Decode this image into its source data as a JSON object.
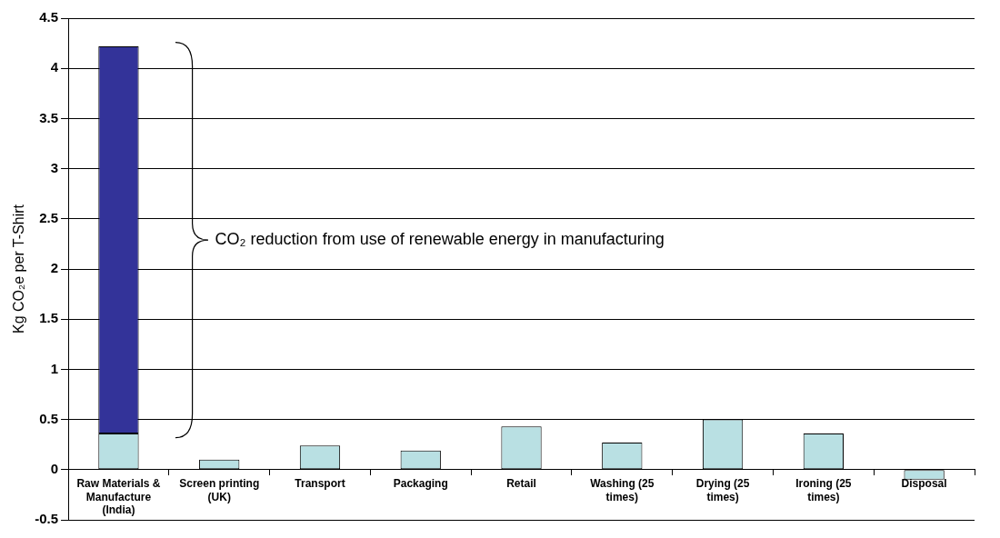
{
  "chart_data": {
    "type": "bar",
    "stacked": true,
    "ylabel": "Kg CO₂e per T-Shirt",
    "categories": [
      "Raw Materials & Manufacture (India)",
      "Screen printing (UK)",
      "Transport",
      "Packaging",
      "Retail",
      "Washing (25 times)",
      "Drying (25 times)",
      "Ironing (25 times)",
      "Disposal"
    ],
    "series": [
      {
        "color": "#b9e0e3",
        "values": [
          0.36,
          0.1,
          0.24,
          0.19,
          0.43,
          0.27,
          0.5,
          0.36,
          -0.1
        ]
      },
      {
        "color": "#333399",
        "values": [
          3.86,
          null,
          null,
          null,
          null,
          null,
          null,
          null,
          null
        ]
      }
    ],
    "ylim": [
      -0.5,
      4.5
    ],
    "yticks": [
      -0.5,
      0,
      0.5,
      1,
      1.5,
      2,
      2.5,
      3,
      3.5,
      4,
      4.5
    ],
    "grid": "y",
    "legend": false,
    "annotations": [
      "CO₂ reduction from use of renewable energy in manufacturing"
    ]
  }
}
